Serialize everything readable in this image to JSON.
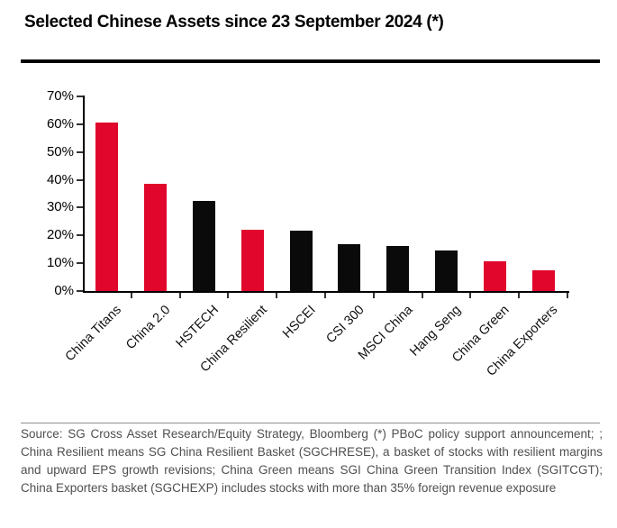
{
  "title": "Selected Chinese Assets since 23 September 2024 (*)",
  "footer": {
    "source_text": "Source: SG Cross Asset Research/Equity Strategy, Bloomberg (*) PBoC policy support announcement; ; China Resilient means SG China Resilient Basket (SGCHRESE), a basket of stocks with resilient margins and upward EPS growth revisions; China Green means SGI China Green Transition Index (SGITCGT); China Exporters basket (SGCHEXP) includes stocks with more than 35% foreign revenue exposure"
  },
  "chart_data": {
    "type": "bar",
    "title": "Selected Chinese Assets since 23 September 2024 (*)",
    "categories": [
      "China Titans",
      "China 2.0",
      "HSTECH",
      "China Resilient",
      "HSCEI",
      "CSI 300",
      "MSCI China",
      "Hang Seng",
      "China Green",
      "China Exporters"
    ],
    "values": [
      60.5,
      38.5,
      32.5,
      22,
      21.8,
      17,
      16.2,
      14.5,
      10.8,
      7.6
    ],
    "unit": "%",
    "bar_colors": [
      "#e0062c",
      "#e0062c",
      "#0a0a0a",
      "#e0062c",
      "#0a0a0a",
      "#0a0a0a",
      "#0a0a0a",
      "#0a0a0a",
      "#e0062c",
      "#e0062c"
    ],
    "series_colors": {
      "sg_baskets_red": "#e0062c",
      "benchmarks_black": "#0a0a0a"
    },
    "xlabel": "",
    "ylabel": "",
    "ylim": [
      0,
      70
    ],
    "ytick_step": 10,
    "ytick_labels": [
      "0%",
      "10%",
      "20%",
      "30%",
      "40%",
      "50%",
      "60%",
      "70%"
    ],
    "grid": false,
    "legend": null,
    "xtick_rotation_deg": 45
  }
}
